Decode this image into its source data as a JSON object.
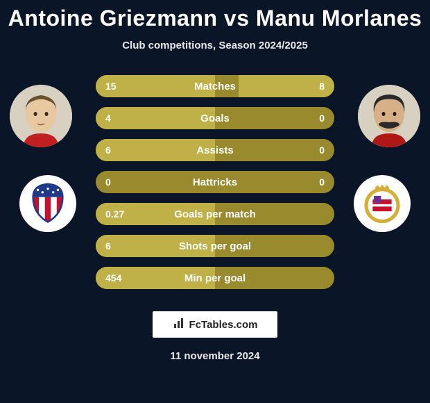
{
  "title": "Antoine Griezmann vs Manu Morlanes",
  "subtitle": "Club competitions, Season 2024/2025",
  "date": "11 november 2024",
  "branding_text": "FcTables.com",
  "colors": {
    "bg": "#0a1628",
    "bar_bg": "#9a8a2e",
    "bar_fill": "#c0b048",
    "text": "#ffffff"
  },
  "player_left": {
    "name": "Antoine Griezmann",
    "skin": "#e8c8a0",
    "hair": "#6b5030"
  },
  "player_right": {
    "name": "Manu Morlanes",
    "skin": "#d8b088",
    "hair": "#2a2a2a"
  },
  "club_left": {
    "name": "Atletico Madrid",
    "stripes": [
      "#c8102e",
      "#ffffff",
      "#c8102e",
      "#ffffff",
      "#c8102e"
    ],
    "accent": "#1e3a8a"
  },
  "club_right": {
    "name": "RCD Mallorca",
    "primary": "#d4af37",
    "secondary": "#c8102e"
  },
  "rows": [
    {
      "label": "Matches",
      "left": "15",
      "right": "8",
      "left_w": 50,
      "right_w": 40
    },
    {
      "label": "Goals",
      "left": "4",
      "right": "0",
      "left_w": 50,
      "right_w": 0
    },
    {
      "label": "Assists",
      "left": "6",
      "right": "0",
      "left_w": 50,
      "right_w": 0
    },
    {
      "label": "Hattricks",
      "left": "0",
      "right": "0",
      "left_w": 0,
      "right_w": 0
    },
    {
      "label": "Goals per match",
      "left": "0.27",
      "right": "",
      "left_w": 50,
      "right_w": 0
    },
    {
      "label": "Shots per goal",
      "left": "6",
      "right": "",
      "left_w": 50,
      "right_w": 0
    },
    {
      "label": "Min per goal",
      "left": "454",
      "right": "",
      "left_w": 50,
      "right_w": 0
    }
  ]
}
